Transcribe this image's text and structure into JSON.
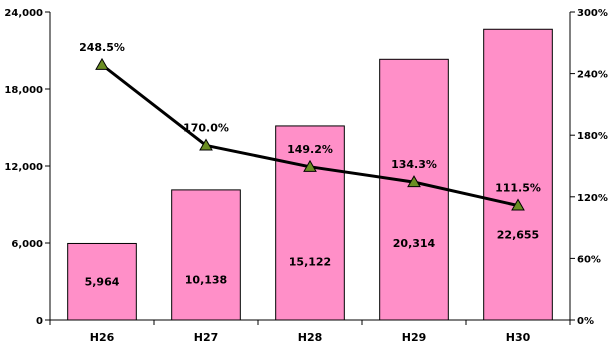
{
  "chart_data": {
    "type": "bar",
    "categories": [
      "H26",
      "H27",
      "H28",
      "H29",
      "H30"
    ],
    "series": [
      {
        "type": "bar",
        "axis": "left",
        "values": [
          5964,
          10138,
          15122,
          20314,
          22655
        ],
        "labels": [
          "5,964",
          "10,138",
          "15,122",
          "20,314",
          "22,655"
        ],
        "color": "#ff8fc8",
        "border_color": "#000000"
      },
      {
        "type": "line",
        "axis": "right",
        "values": [
          248.5,
          170.0,
          149.2,
          134.3,
          111.5
        ],
        "labels": [
          "248.5%",
          "170.0%",
          "149.2%",
          "134.3%",
          "111.5%"
        ],
        "color": "#000000",
        "marker": "triangle",
        "marker_color": "#6b8e23"
      }
    ],
    "y_left": {
      "min": 0,
      "max": 24000,
      "ticks": [
        "0",
        "6,000",
        "12,000",
        "18,000",
        "24,000"
      ]
    },
    "y_right": {
      "min": 0,
      "max": 300,
      "ticks": [
        "0%",
        "60%",
        "120%",
        "180%",
        "240%",
        "300%"
      ]
    },
    "grid": false,
    "legend": "none"
  }
}
